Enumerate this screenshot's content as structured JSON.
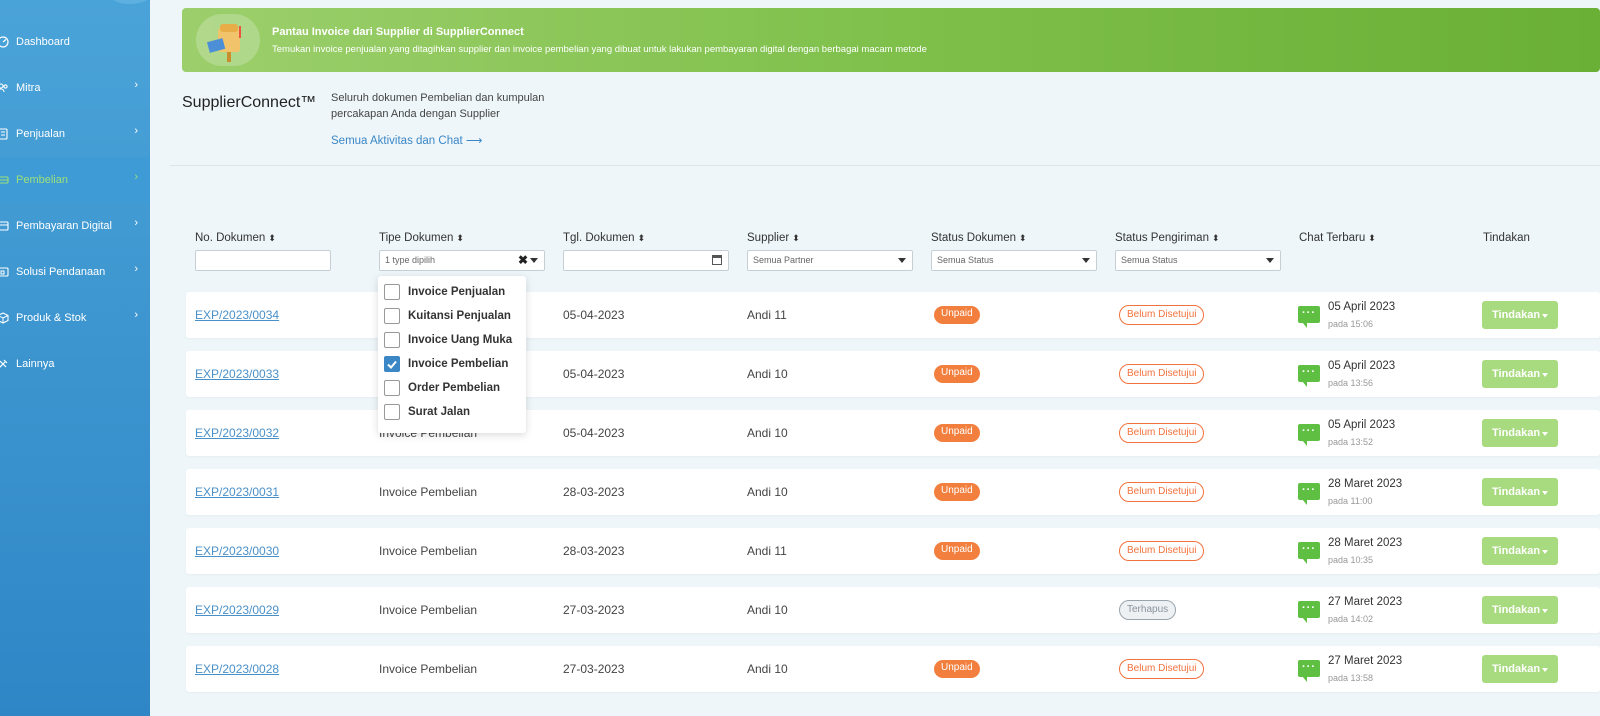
{
  "sidebar": {
    "items": [
      {
        "label": "Dashboard",
        "icon": "dashboard-icon",
        "has_chevron": false,
        "active": false
      },
      {
        "label": "Mitra",
        "icon": "users-icon",
        "has_chevron": true,
        "active": false
      },
      {
        "label": "Penjualan",
        "icon": "document-icon",
        "has_chevron": true,
        "active": false
      },
      {
        "label": "Pembelian",
        "icon": "cart-icon",
        "has_chevron": true,
        "active": true
      },
      {
        "label": "Pembayaran Digital",
        "icon": "card-icon",
        "has_chevron": true,
        "active": false
      },
      {
        "label": "Solusi Pendanaan",
        "icon": "money-icon",
        "has_chevron": true,
        "active": false
      },
      {
        "label": "Produk & Stok",
        "icon": "box-icon",
        "has_chevron": true,
        "active": false
      },
      {
        "label": "Lainnya",
        "icon": "tools-icon",
        "has_chevron": false,
        "active": false
      }
    ]
  },
  "banner": {
    "title": "Pantau Invoice dari Supplier di SupplierConnect",
    "subtitle": "Temukan invoice penjualan yang ditagihkan supplier dan invoice pembelian yang dibuat untuk lakukan pembayaran digital dengan berbagai macam metode"
  },
  "header": {
    "brand": "SupplierConnect™",
    "description": "Seluruh dokumen Pembelian dan kumpulan percakapan Anda dengan Supplier",
    "all_link": "Semua Aktivitas dan Chat ⟶"
  },
  "table": {
    "columns": [
      "No. Dokumen",
      "Tipe Dokumen",
      "Tgl. Dokumen",
      "Supplier",
      "Status Dokumen",
      "Status Pengiriman",
      "Chat Terbaru",
      "Tindakan"
    ],
    "filters": {
      "doc_type_value": "1 type dipilih",
      "supplier_value": "Semua Partner",
      "status_doc_value": "Semua Status",
      "status_ship_value": "Semua Status"
    },
    "rows": [
      {
        "no": "EXP/2023/0034",
        "type": "",
        "date": "05-04-2023",
        "supplier": "Andi 11",
        "status_doc": "Unpaid",
        "status_ship": "Belum Disetujui",
        "ship_kind": "belum",
        "chat_date": "05 April 2023",
        "chat_time": "pada 15:06",
        "action": "Tindakan"
      },
      {
        "no": "EXP/2023/0033",
        "type": "",
        "date": "05-04-2023",
        "supplier": "Andi 10",
        "status_doc": "Unpaid",
        "status_ship": "Belum Disetujui",
        "ship_kind": "belum",
        "chat_date": "05 April 2023",
        "chat_time": "pada 13:56",
        "action": "Tindakan"
      },
      {
        "no": "EXP/2023/0032",
        "type": "Invoice Pembelian",
        "date": "05-04-2023",
        "supplier": "Andi 10",
        "status_doc": "Unpaid",
        "status_ship": "Belum Disetujui",
        "ship_kind": "belum",
        "chat_date": "05 April 2023",
        "chat_time": "pada 13:52",
        "action": "Tindakan"
      },
      {
        "no": "EXP/2023/0031",
        "type": "Invoice Pembelian",
        "date": "28-03-2023",
        "supplier": "Andi 10",
        "status_doc": "Unpaid",
        "status_ship": "Belum Disetujui",
        "ship_kind": "belum",
        "chat_date": "28 Maret 2023",
        "chat_time": "pada 11:00",
        "action": "Tindakan"
      },
      {
        "no": "EXP/2023/0030",
        "type": "Invoice Pembelian",
        "date": "28-03-2023",
        "supplier": "Andi 11",
        "status_doc": "Unpaid",
        "status_ship": "Belum Disetujui",
        "ship_kind": "belum",
        "chat_date": "28 Maret 2023",
        "chat_time": "pada 10:35",
        "action": "Tindakan"
      },
      {
        "no": "EXP/2023/0029",
        "type": "Invoice Pembelian",
        "date": "27-03-2023",
        "supplier": "Andi 10",
        "status_doc": "",
        "status_ship": "Terhapus",
        "ship_kind": "terhapus",
        "chat_date": "27 Maret 2023",
        "chat_time": "pada 14:02",
        "action": "Tindakan"
      },
      {
        "no": "EXP/2023/0028",
        "type": "Invoice Pembelian",
        "date": "27-03-2023",
        "supplier": "Andi 10",
        "status_doc": "Unpaid",
        "status_ship": "Belum Disetujui",
        "ship_kind": "belum",
        "chat_date": "27 Maret 2023",
        "chat_time": "pada 13:58",
        "action": "Tindakan"
      }
    ]
  },
  "doc_type_dropdown": {
    "options": [
      {
        "label": "Invoice Penjualan",
        "checked": false
      },
      {
        "label": "Kuitansi Penjualan",
        "checked": false
      },
      {
        "label": "Invoice Uang Muka",
        "checked": false
      },
      {
        "label": "Invoice Pembelian",
        "checked": true
      },
      {
        "label": "Order Pembelian",
        "checked": false
      },
      {
        "label": "Surat Jalan",
        "checked": false
      }
    ]
  },
  "colors": {
    "sidebar": "#3a91cf",
    "active_nav": "#9be07a",
    "banner": "#7fc04b",
    "unpaid": "#f27f3d",
    "link": "#4a90c8",
    "action": "#a8da7f",
    "chat": "#5fbf42"
  }
}
